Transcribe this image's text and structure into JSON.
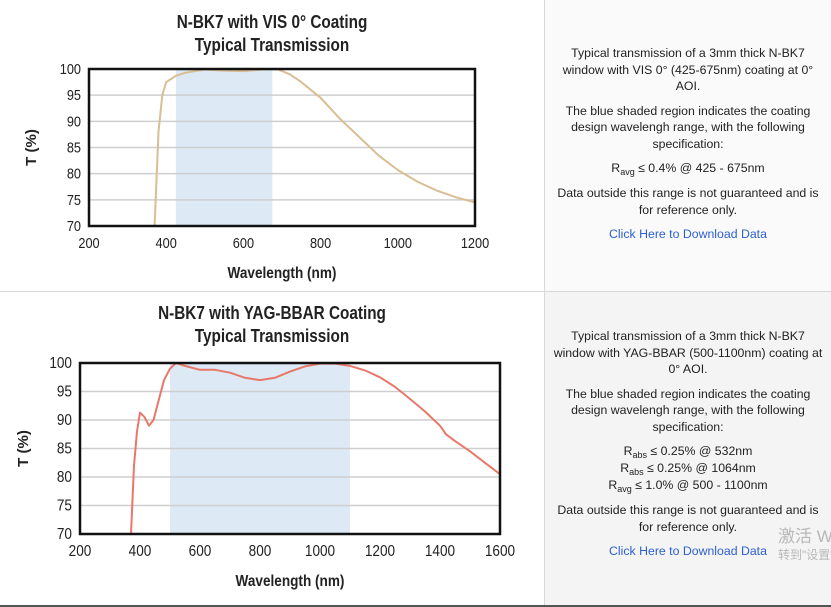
{
  "chart_data": [
    {
      "type": "line",
      "title": "N-BK7 with VIS 0° Coating",
      "subtitle": "Typical Transmission",
      "xlabel": "Wavelength (nm)",
      "ylabel": "T (%)",
      "xlim": [
        200,
        1200
      ],
      "ylim": [
        70,
        100
      ],
      "xticks": [
        200,
        400,
        600,
        800,
        1000,
        1200
      ],
      "yticks": [
        70,
        75,
        80,
        85,
        90,
        95,
        100
      ],
      "grid": true,
      "shaded_region": [
        425,
        675
      ],
      "shade_color": "#dde9f5",
      "line_color": "#d9bd93",
      "series": [
        {
          "x": [
            370,
            380,
            390,
            400,
            425,
            450,
            500,
            550,
            600,
            650,
            690,
            720,
            750,
            800,
            850,
            900,
            950,
            1000,
            1050,
            1100,
            1150,
            1200
          ],
          "y": [
            70,
            88,
            95,
            97.5,
            98.7,
            99.3,
            99.9,
            99.7,
            99.6,
            99.9,
            99.9,
            99,
            97.5,
            94.5,
            90.5,
            87,
            83.5,
            80.7,
            78.5,
            76.8,
            75.5,
            74.5
          ]
        }
      ]
    },
    {
      "type": "line",
      "title": "N-BK7 with YAG-BBAR Coating",
      "subtitle": "Typical Transmission",
      "xlabel": "Wavelength (nm)",
      "ylabel": "T (%)",
      "xlim": [
        200,
        1600
      ],
      "ylim": [
        70,
        100
      ],
      "xticks": [
        200,
        400,
        600,
        800,
        1000,
        1200,
        1400,
        1600
      ],
      "yticks": [
        70,
        75,
        80,
        85,
        90,
        95,
        100
      ],
      "grid": true,
      "shaded_region": [
        500,
        1100
      ],
      "shade_color": "#dde9f5",
      "line_color": "#e8786a",
      "series": [
        {
          "x": [
            370,
            380,
            390,
            400,
            415,
            430,
            445,
            460,
            480,
            500,
            520,
            550,
            600,
            650,
            700,
            750,
            800,
            850,
            900,
            950,
            1000,
            1050,
            1100,
            1150,
            1200,
            1250,
            1300,
            1350,
            1400,
            1420,
            1450,
            1500,
            1550,
            1600
          ],
          "y": [
            70,
            82,
            88,
            91.3,
            90.5,
            89,
            90,
            93,
            97,
            99,
            100,
            99.5,
            98.8,
            98.8,
            98.3,
            97.4,
            97,
            97.4,
            98.5,
            99.4,
            99.9,
            99.9,
            99.5,
            98.7,
            97.5,
            95.8,
            93.7,
            91.5,
            89,
            87.5,
            86.3,
            84.5,
            82.5,
            80.5
          ]
        }
      ]
    }
  ],
  "panels": [
    {
      "description": "Typical transmission of a 3mm thick N-BK7 window with VIS 0° (425-675nm) coating at 0° AOI.",
      "shaded_note": "The blue shaded region indicates the coating design wavelengh range, with the following specification:",
      "specs": [
        {
          "symbol": "R",
          "sub": "avg",
          "text": " ≤ 0.4% @ 425 - 675nm"
        }
      ],
      "disclaimer": "Data outside this range is not guaranteed and is for reference only.",
      "download_link": "Click Here to Download Data"
    },
    {
      "description": "Typical transmission of a 3mm thick N-BK7 window with YAG-BBAR (500-1100nm) coating at 0° AOI.",
      "shaded_note": "The blue shaded region indicates the coating design wavelengh range, with the following specification:",
      "specs": [
        {
          "symbol": "R",
          "sub": "abs",
          "text": " ≤ 0.25% @ 532nm"
        },
        {
          "symbol": "R",
          "sub": "abs",
          "text": " ≤ 0.25% @ 1064nm"
        },
        {
          "symbol": "R",
          "sub": "avg",
          "text": " ≤ 1.0% @ 500 - 1100nm"
        }
      ],
      "disclaimer": "Data outside this range is not guaranteed and is for reference only.",
      "download_link": "Click Here to Download Data"
    }
  ],
  "watermark": {
    "line1": "激活 Windows",
    "line2": "转到\"设置\""
  }
}
